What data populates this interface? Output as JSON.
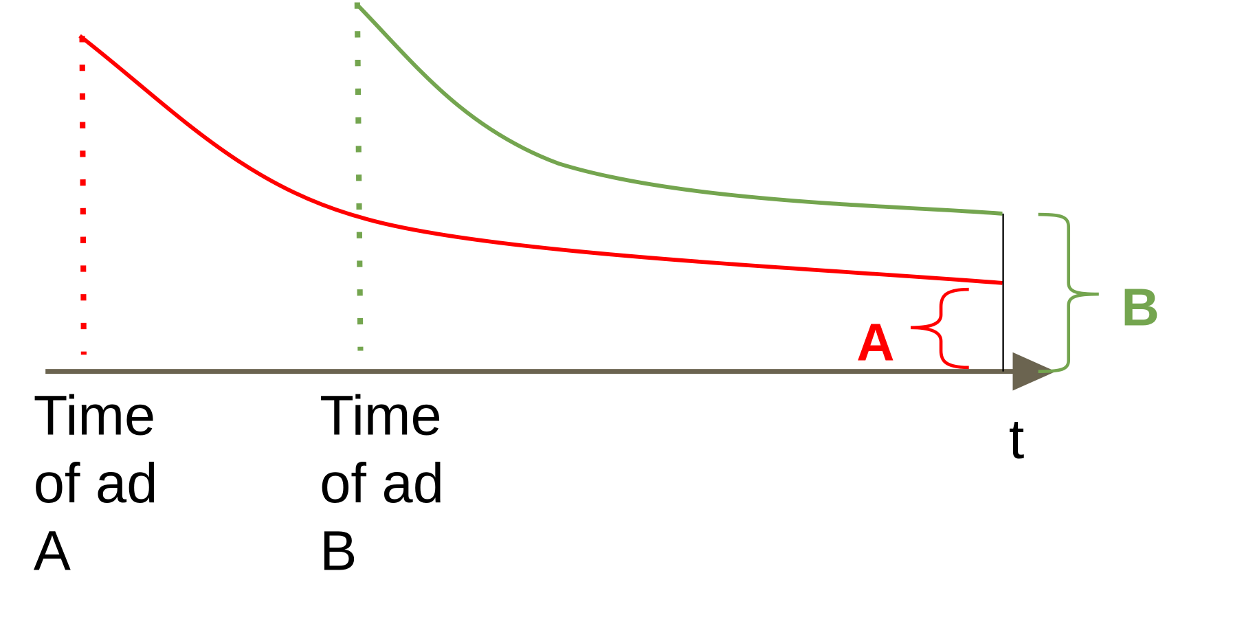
{
  "labels": {
    "ad_a": [
      "Time",
      "of ad",
      "A"
    ],
    "ad_b": [
      "Time",
      "of ad",
      "B"
    ],
    "time_axis": "t",
    "brace_a": "A",
    "brace_b": "B"
  }
}
